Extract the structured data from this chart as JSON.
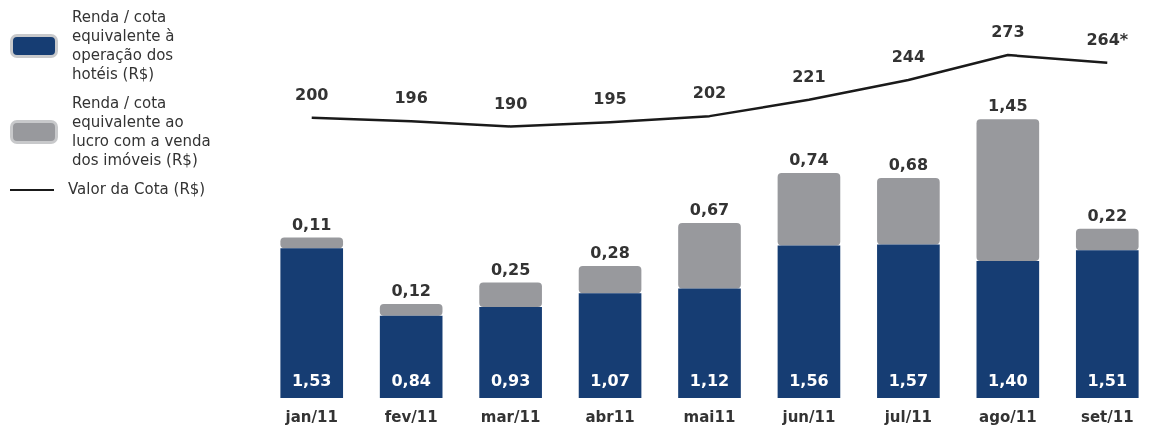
{
  "chart_data": {
    "type": "bar",
    "stacked": true,
    "legend": "left",
    "categories": [
      "jan/11",
      "fev/11",
      "mar/11",
      "abr11",
      "mai11",
      "jun/11",
      "jul/11",
      "ago/11",
      "set/11"
    ],
    "series": [
      {
        "name": "Renda / cota equivalente à operação dos hotéis (R$)",
        "color": "#163d73",
        "values": [
          1.53,
          0.84,
          0.93,
          1.07,
          1.12,
          1.56,
          1.57,
          1.4,
          1.51
        ],
        "value_labels": [
          "1,53",
          "0,84",
          "0,93",
          "1,07",
          "1,12",
          "1,56",
          "1,57",
          "1,40",
          "1,51"
        ]
      },
      {
        "name": "Renda / cota equivalente ao lucro com a venda dos imóveis (R$)",
        "color": "#98999d",
        "values": [
          0.11,
          0.12,
          0.25,
          0.28,
          0.67,
          0.74,
          0.68,
          1.45,
          0.22
        ],
        "value_labels": [
          "0,11",
          "0,12",
          "0,25",
          "0,28",
          "0,67",
          "0,74",
          "0,68",
          "1,45",
          "0,22"
        ]
      },
      {
        "name": "Valor da Cota (R$)",
        "type": "line",
        "axis": "y2",
        "color": "#1a1a1a",
        "marker": "none",
        "values": [
          200,
          196,
          190,
          195,
          202,
          221,
          244,
          273,
          264
        ],
        "value_labels": [
          "200",
          "196",
          "190",
          "195",
          "202",
          "221",
          "244",
          "273",
          "264*"
        ]
      }
    ]
  }
}
